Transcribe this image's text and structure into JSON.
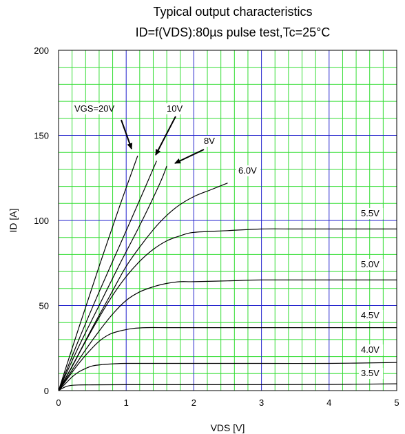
{
  "chart_data": {
    "type": "line",
    "title": "Typical output characteristics",
    "subtitle": "ID=f(VDS):80µs pulse test,Tc=25°C",
    "xlabel": "VDS [V]",
    "ylabel": "ID [A]",
    "xlim": [
      0,
      5
    ],
    "ylim": [
      0,
      200
    ],
    "xticks": [
      0,
      1,
      2,
      3,
      4,
      5
    ],
    "yticks": [
      0,
      50,
      100,
      150,
      200
    ],
    "grid": true,
    "series": [
      {
        "name": "VGS=20V",
        "x": [
          0,
          0.3,
          0.6,
          0.9,
          1.17
        ],
        "y": [
          0,
          37,
          73,
          108,
          138
        ]
      },
      {
        "name": "10V",
        "x": [
          0,
          0.3,
          0.6,
          0.9,
          1.2,
          1.45
        ],
        "y": [
          0,
          30,
          58,
          85,
          112,
          135
        ]
      },
      {
        "name": "8V",
        "x": [
          0,
          0.3,
          0.6,
          0.9,
          1.2,
          1.5,
          1.6
        ],
        "y": [
          0,
          26,
          50,
          74,
          97,
          122,
          132
        ]
      },
      {
        "name": "6.0V",
        "x": [
          0,
          0.25,
          0.5,
          0.75,
          1.0,
          1.25,
          1.5,
          1.75,
          2.0,
          2.25,
          2.5
        ],
        "y": [
          0,
          18,
          37,
          55,
          73,
          87,
          99,
          108,
          114,
          118,
          122
        ]
      },
      {
        "name": "5.5V",
        "x": [
          0,
          0.2,
          0.4,
          0.6,
          0.8,
          1.0,
          1.2,
          1.4,
          1.6,
          1.8,
          2.0,
          2.5,
          3.0,
          3.5,
          4.0,
          5.0
        ],
        "y": [
          0,
          14,
          29,
          43,
          56,
          67,
          76,
          83,
          88,
          91,
          93,
          94,
          95,
          95,
          95,
          95
        ]
      },
      {
        "name": "5.0V",
        "x": [
          0,
          0.2,
          0.4,
          0.6,
          0.8,
          1.0,
          1.2,
          1.4,
          1.6,
          1.8,
          2.0,
          2.5,
          3.0,
          4.0,
          5.0
        ],
        "y": [
          0,
          12,
          24,
          35,
          45,
          53,
          58,
          61,
          63,
          64,
          64,
          64.5,
          65,
          65,
          65
        ]
      },
      {
        "name": "4.5V",
        "x": [
          0,
          0.15,
          0.3,
          0.45,
          0.6,
          0.75,
          0.9,
          1.1,
          1.3,
          1.6,
          2.0,
          3.0,
          4.0,
          5.0
        ],
        "y": [
          0,
          8,
          16,
          23,
          29,
          33,
          35,
          36.5,
          37,
          37,
          37,
          37,
          37,
          37
        ]
      },
      {
        "name": "4.0V",
        "x": [
          0,
          0.1,
          0.2,
          0.3,
          0.4,
          0.5,
          0.65,
          0.8,
          1.0,
          1.5,
          2.0,
          3.0,
          4.0,
          5.0
        ],
        "y": [
          0,
          4,
          8,
          11,
          13,
          14.5,
          15.3,
          15.7,
          16,
          16,
          16,
          16,
          16,
          16.5
        ]
      },
      {
        "name": "3.5V",
        "x": [
          0,
          0.05,
          0.1,
          0.15,
          0.2,
          0.3,
          0.5,
          1.0,
          2.0,
          3.0,
          4.0,
          5.0
        ],
        "y": [
          0,
          1.2,
          2.2,
          2.8,
          3.1,
          3.3,
          3.4,
          3.5,
          3.5,
          3.5,
          3.6,
          4
        ]
      }
    ],
    "annotations": [
      {
        "label": "VGS=20V",
        "target_series": "VGS=20V",
        "arrow": true
      },
      {
        "label": "10V",
        "target_series": "10V",
        "arrow": true
      },
      {
        "label": "8V",
        "target_series": "8V",
        "arrow": true
      },
      {
        "label": "6.0V",
        "target_series": "6.0V",
        "arrow": false
      },
      {
        "label": "5.5V",
        "target_series": "5.5V",
        "arrow": false
      },
      {
        "label": "5.0V",
        "target_series": "5.0V",
        "arrow": false
      },
      {
        "label": "4.5V",
        "target_series": "4.5V",
        "arrow": false
      },
      {
        "label": "4.0V",
        "target_series": "4.0V",
        "arrow": false
      },
      {
        "label": "3.5V",
        "target_series": "3.5V",
        "arrow": false
      }
    ],
    "colors": {
      "minor_grid": "#33dd33",
      "major_grid": "#2222cc",
      "curve": "#000000"
    }
  }
}
